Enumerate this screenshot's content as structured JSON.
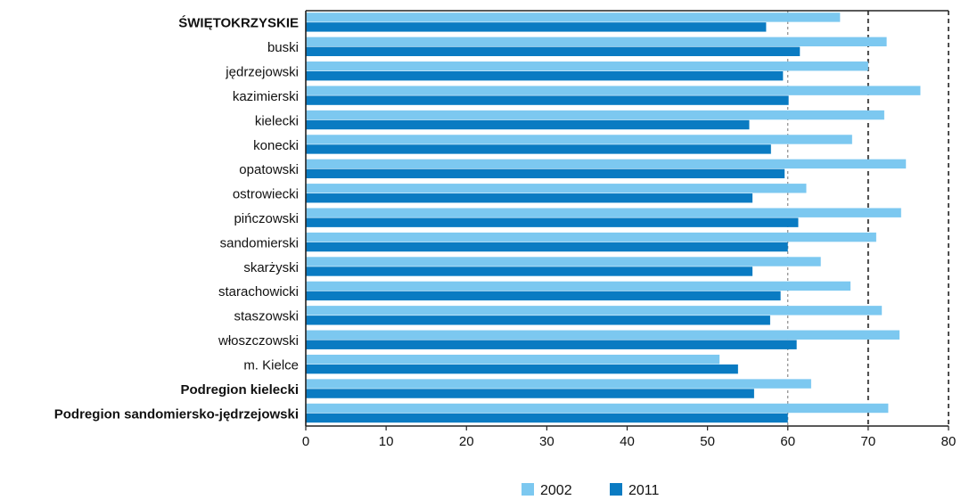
{
  "chart_data": {
    "type": "bar",
    "orientation": "horizontal",
    "categories": [
      "ŚWIĘTOKRZYSKIE",
      "buski",
      "jędrzejowski",
      "kazimierski",
      "kielecki",
      "konecki",
      "opatowski",
      "ostrowiecki",
      "pińczowski",
      "sandomierski",
      "skarżyski",
      "starachowicki",
      "staszowski",
      "włoszczowski",
      "m. Kielce",
      "Podregion  kielecki",
      "Podregion sandomiersko-jędrzejowski"
    ],
    "bold_categories": [
      "ŚWIĘTOKRZYSKIE",
      "Podregion  kielecki",
      "Podregion sandomiersko-jędrzejowski"
    ],
    "series": [
      {
        "name": "2002",
        "color": "#7cc8f0",
        "values": [
          66.5,
          72.3,
          70.0,
          76.5,
          72.0,
          68.0,
          74.7,
          62.3,
          74.1,
          71.0,
          64.1,
          67.8,
          71.7,
          73.9,
          51.5,
          62.9,
          72.5
        ]
      },
      {
        "name": "2011",
        "color": "#0a7bc2",
        "values": [
          57.3,
          61.5,
          59.4,
          60.1,
          55.2,
          57.9,
          59.6,
          55.6,
          61.3,
          60.0,
          55.6,
          59.1,
          57.8,
          61.1,
          53.8,
          55.8,
          60.0
        ]
      }
    ],
    "xlim": [
      0,
      80
    ],
    "xticks": [
      "0",
      "10",
      "20",
      "30",
      "40",
      "50",
      "60",
      "70",
      "80"
    ],
    "reference_lines": [
      60,
      70,
      80
    ],
    "legend_position": "bottom-center",
    "title": "",
    "xlabel": "",
    "ylabel": ""
  }
}
